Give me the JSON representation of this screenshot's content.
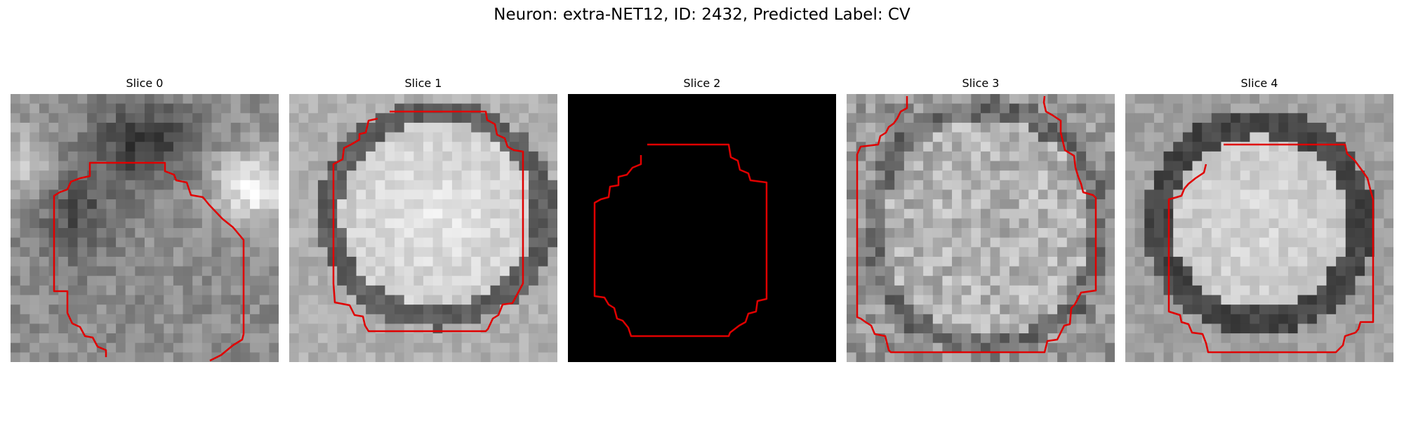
{
  "figure": {
    "title": "Neuron: extra-NET12, ID: 2432, Predicted Label: CV",
    "contour_color": "#e00000"
  },
  "panels": [
    {
      "title": "Slice 0",
      "image_kind": "noisy-grayscale",
      "background": "#7f7f7f"
    },
    {
      "title": "Slice 1",
      "image_kind": "noisy-grayscale",
      "background": "#8a8a8a"
    },
    {
      "title": "Slice 2",
      "image_kind": "solid-black",
      "background": "#000000"
    },
    {
      "title": "Slice 3",
      "image_kind": "noisy-grayscale",
      "background": "#959595"
    },
    {
      "title": "Slice 4",
      "image_kind": "noisy-grayscale",
      "background": "#909090"
    }
  ]
}
